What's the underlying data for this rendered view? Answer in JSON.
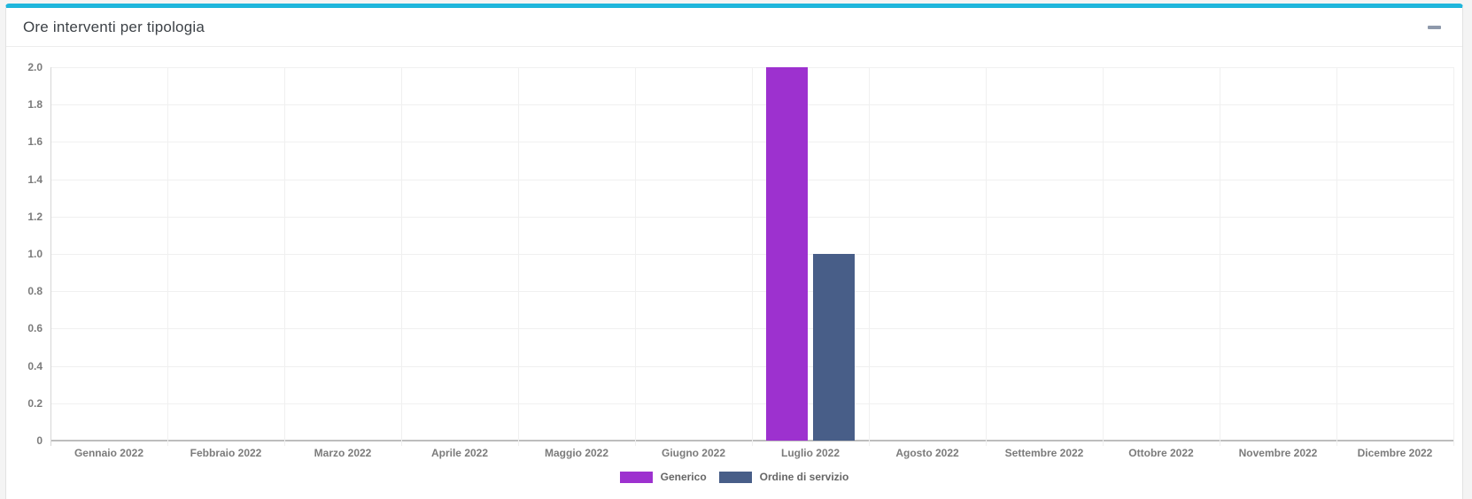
{
  "panel": {
    "title": "Ore interventi per tipologia",
    "accent_color": "#1fb6dc",
    "collapse_icon": "minus"
  },
  "chart_data": {
    "type": "bar",
    "title": "Ore interventi per tipologia",
    "categories": [
      "Gennaio 2022",
      "Febbraio 2022",
      "Marzo 2022",
      "Aprile 2022",
      "Maggio 2022",
      "Giugno 2022",
      "Luglio 2022",
      "Agosto 2022",
      "Settembre 2022",
      "Ottobre 2022",
      "Novembre 2022",
      "Dicembre 2022"
    ],
    "series": [
      {
        "name": "Generico",
        "color": "#9d31cf",
        "values": [
          0,
          0,
          0,
          0,
          0,
          0,
          2,
          0,
          0,
          0,
          0,
          0
        ]
      },
      {
        "name": "Ordine di servizio",
        "color": "#485e88",
        "values": [
          0,
          0,
          0,
          0,
          0,
          0,
          1,
          0,
          0,
          0,
          0,
          0
        ]
      }
    ],
    "ylim": [
      0,
      2
    ],
    "y_ticks": [
      "2.0",
      "1.8",
      "1.6",
      "1.4",
      "1.2",
      "1.0",
      "0.8",
      "0.6",
      "0.4",
      "0.2",
      "0"
    ],
    "grid": true,
    "legend_position": "bottom",
    "tick_color": "#7b7b7b",
    "gridline_color": "#f0f0f0"
  }
}
